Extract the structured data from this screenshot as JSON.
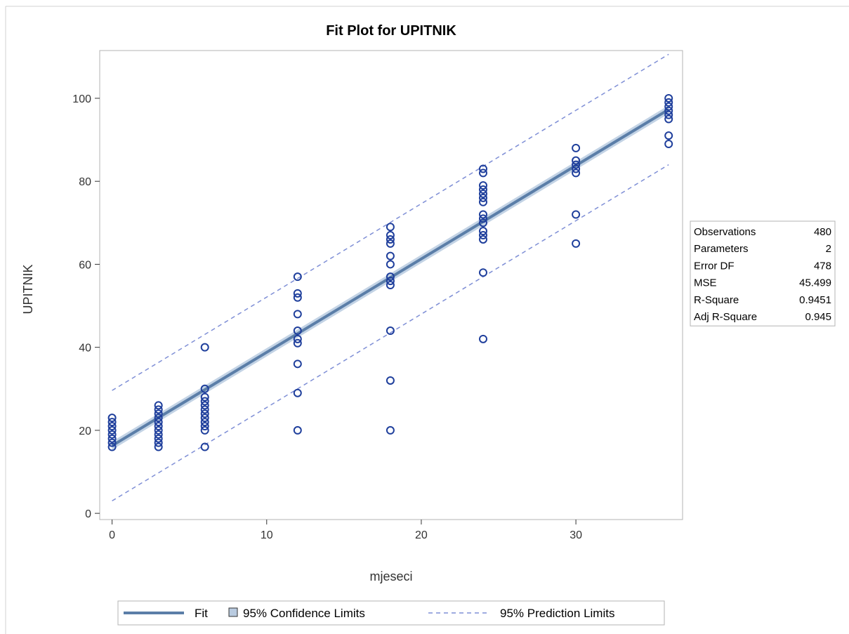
{
  "chart_data": {
    "type": "scatter",
    "title": "Fit Plot for UPITNIK",
    "xlabel": "mjeseci",
    "ylabel": "UPITNIK",
    "xlim": [
      -0.8,
      36.9
    ],
    "ylim": [
      -1.5,
      111.5
    ],
    "xticks": [
      0,
      10,
      20,
      30
    ],
    "yticks": [
      0,
      20,
      40,
      60,
      80,
      100
    ],
    "grid": false,
    "fit": {
      "intercept": 16.3,
      "slope": 2.25,
      "x_range": [
        0,
        36
      ]
    },
    "confidence_halfwidth": 1.0,
    "prediction_halfwidth": 13.3,
    "points": [
      [
        0,
        16
      ],
      [
        0,
        17
      ],
      [
        0,
        18
      ],
      [
        0,
        19
      ],
      [
        0,
        20
      ],
      [
        0,
        21
      ],
      [
        0,
        22
      ],
      [
        0,
        23
      ],
      [
        3,
        16
      ],
      [
        3,
        17
      ],
      [
        3,
        18
      ],
      [
        3,
        19
      ],
      [
        3,
        20
      ],
      [
        3,
        21
      ],
      [
        3,
        22
      ],
      [
        3,
        23
      ],
      [
        3,
        24
      ],
      [
        3,
        25
      ],
      [
        3,
        26
      ],
      [
        6,
        16
      ],
      [
        6,
        20
      ],
      [
        6,
        21
      ],
      [
        6,
        22
      ],
      [
        6,
        23
      ],
      [
        6,
        24
      ],
      [
        6,
        25
      ],
      [
        6,
        26
      ],
      [
        6,
        27
      ],
      [
        6,
        28
      ],
      [
        6,
        30
      ],
      [
        6,
        40
      ],
      [
        12,
        20
      ],
      [
        12,
        29
      ],
      [
        12,
        36
      ],
      [
        12,
        41
      ],
      [
        12,
        42
      ],
      [
        12,
        44
      ],
      [
        12,
        48
      ],
      [
        12,
        52
      ],
      [
        12,
        53
      ],
      [
        12,
        57
      ],
      [
        18,
        20
      ],
      [
        18,
        32
      ],
      [
        18,
        44
      ],
      [
        18,
        55
      ],
      [
        18,
        56
      ],
      [
        18,
        57
      ],
      [
        18,
        60
      ],
      [
        18,
        62
      ],
      [
        18,
        65
      ],
      [
        18,
        66
      ],
      [
        18,
        67
      ],
      [
        18,
        69
      ],
      [
        24,
        42
      ],
      [
        24,
        58
      ],
      [
        24,
        66
      ],
      [
        24,
        67
      ],
      [
        24,
        68
      ],
      [
        24,
        70
      ],
      [
        24,
        71
      ],
      [
        24,
        72
      ],
      [
        24,
        75
      ],
      [
        24,
        76
      ],
      [
        24,
        77
      ],
      [
        24,
        78
      ],
      [
        24,
        79
      ],
      [
        24,
        82
      ],
      [
        24,
        83
      ],
      [
        30,
        65
      ],
      [
        30,
        72
      ],
      [
        30,
        82
      ],
      [
        30,
        83
      ],
      [
        30,
        84
      ],
      [
        30,
        85
      ],
      [
        30,
        88
      ],
      [
        36,
        89
      ],
      [
        36,
        91
      ],
      [
        36,
        95
      ],
      [
        36,
        96
      ],
      [
        36,
        97
      ],
      [
        36,
        98
      ],
      [
        36,
        99
      ],
      [
        36,
        100
      ]
    ],
    "stats": [
      {
        "label": "Observations",
        "value": "480"
      },
      {
        "label": "Parameters",
        "value": "2"
      },
      {
        "label": "Error DF",
        "value": "478"
      },
      {
        "label": "MSE",
        "value": "45.499"
      },
      {
        "label": "R-Square",
        "value": "0.9451"
      },
      {
        "label": "Adj R-Square",
        "value": "0.945"
      }
    ],
    "legend": {
      "position": "bottom",
      "items": [
        {
          "label": "Fit"
        },
        {
          "label": "95% Confidence Limits"
        },
        {
          "label": "95% Prediction Limits"
        }
      ]
    },
    "colors": {
      "marker": "#1f3f9c",
      "fit_line": "#5b7ea8",
      "confidence_band": "#b9cbe0",
      "prediction_line": "#7f8fd6",
      "frame": "#b3b3b3"
    }
  }
}
